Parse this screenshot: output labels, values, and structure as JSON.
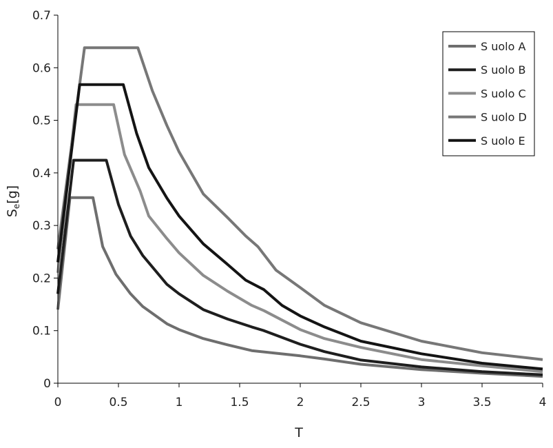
{
  "chart_data": {
    "type": "line",
    "title": "",
    "xlabel": "T",
    "ylabel": "S",
    "ylabel_sub": "e",
    "ylabel_suffix": "[g]",
    "xlim": [
      0,
      4
    ],
    "ylim": [
      0,
      0.7
    ],
    "xticks": [
      0,
      0.5,
      1,
      1.5,
      2,
      2.5,
      3,
      3.5,
      4
    ],
    "xtick_labels": [
      "0",
      "0.5",
      "1",
      "1.5",
      "2",
      "2.5",
      "3",
      "3.5",
      "4"
    ],
    "yticks": [
      0,
      0.1,
      0.2,
      0.3,
      0.4,
      0.5,
      0.6,
      0.7
    ],
    "ytick_labels": [
      "0",
      "0.1",
      "0.2",
      "0.3",
      "0.4",
      "0.5",
      "0.6",
      "0.7"
    ],
    "grid": false,
    "legend_position": "top-right",
    "series": [
      {
        "name": "S uolo A",
        "color": "#6e6e6e",
        "points": [
          [
            0,
            0.14
          ],
          [
            0.1,
            0.353
          ],
          [
            0.29,
            0.353
          ],
          [
            0.37,
            0.26
          ],
          [
            0.48,
            0.207
          ],
          [
            0.6,
            0.17
          ],
          [
            0.7,
            0.146
          ],
          [
            0.9,
            0.113
          ],
          [
            1.0,
            0.102
          ],
          [
            1.2,
            0.085
          ],
          [
            1.4,
            0.073
          ],
          [
            1.6,
            0.062
          ],
          [
            1.8,
            0.057
          ],
          [
            2.0,
            0.052
          ],
          [
            2.2,
            0.046
          ],
          [
            2.5,
            0.036
          ],
          [
            3.0,
            0.026
          ],
          [
            3.5,
            0.019
          ],
          [
            4.0,
            0.013
          ]
        ]
      },
      {
        "name": "S uolo B",
        "color": "#1e1e1e",
        "points": [
          [
            0,
            0.17
          ],
          [
            0.13,
            0.424
          ],
          [
            0.4,
            0.424
          ],
          [
            0.5,
            0.34
          ],
          [
            0.6,
            0.28
          ],
          [
            0.7,
            0.243
          ],
          [
            0.9,
            0.188
          ],
          [
            1.0,
            0.17
          ],
          [
            1.2,
            0.14
          ],
          [
            1.4,
            0.122
          ],
          [
            1.6,
            0.107
          ],
          [
            1.7,
            0.1
          ],
          [
            2.0,
            0.074
          ],
          [
            2.2,
            0.06
          ],
          [
            2.5,
            0.044
          ],
          [
            3.0,
            0.031
          ],
          [
            3.5,
            0.022
          ],
          [
            4.0,
            0.016
          ]
        ]
      },
      {
        "name": "S uolo C",
        "color": "#8c8c8c",
        "points": [
          [
            0,
            0.21
          ],
          [
            0.15,
            0.53
          ],
          [
            0.46,
            0.53
          ],
          [
            0.55,
            0.435
          ],
          [
            0.68,
            0.365
          ],
          [
            0.75,
            0.318
          ],
          [
            0.9,
            0.275
          ],
          [
            1.0,
            0.248
          ],
          [
            1.2,
            0.205
          ],
          [
            1.4,
            0.175
          ],
          [
            1.6,
            0.148
          ],
          [
            1.7,
            0.138
          ],
          [
            2.0,
            0.102
          ],
          [
            2.2,
            0.085
          ],
          [
            2.5,
            0.068
          ],
          [
            3.0,
            0.045
          ],
          [
            3.5,
            0.033
          ],
          [
            4.0,
            0.022
          ]
        ]
      },
      {
        "name": "S uolo D",
        "color": "#777777",
        "points": [
          [
            0,
            0.255
          ],
          [
            0.22,
            0.638
          ],
          [
            0.66,
            0.638
          ],
          [
            0.78,
            0.556
          ],
          [
            0.9,
            0.49
          ],
          [
            1.0,
            0.44
          ],
          [
            1.2,
            0.36
          ],
          [
            1.4,
            0.315
          ],
          [
            1.55,
            0.28
          ],
          [
            1.65,
            0.26
          ],
          [
            1.8,
            0.215
          ],
          [
            2.0,
            0.182
          ],
          [
            2.2,
            0.148
          ],
          [
            2.5,
            0.115
          ],
          [
            3.0,
            0.08
          ],
          [
            3.5,
            0.058
          ],
          [
            4.0,
            0.045
          ]
        ]
      },
      {
        "name": "S uolo E",
        "color": "#141414",
        "points": [
          [
            0,
            0.23
          ],
          [
            0.18,
            0.568
          ],
          [
            0.54,
            0.568
          ],
          [
            0.65,
            0.475
          ],
          [
            0.75,
            0.41
          ],
          [
            0.9,
            0.352
          ],
          [
            1.0,
            0.318
          ],
          [
            1.2,
            0.265
          ],
          [
            1.4,
            0.226
          ],
          [
            1.55,
            0.196
          ],
          [
            1.7,
            0.178
          ],
          [
            1.85,
            0.148
          ],
          [
            2.0,
            0.128
          ],
          [
            2.2,
            0.107
          ],
          [
            2.5,
            0.08
          ],
          [
            3.0,
            0.056
          ],
          [
            3.5,
            0.038
          ],
          [
            4.0,
            0.027
          ]
        ]
      }
    ]
  }
}
